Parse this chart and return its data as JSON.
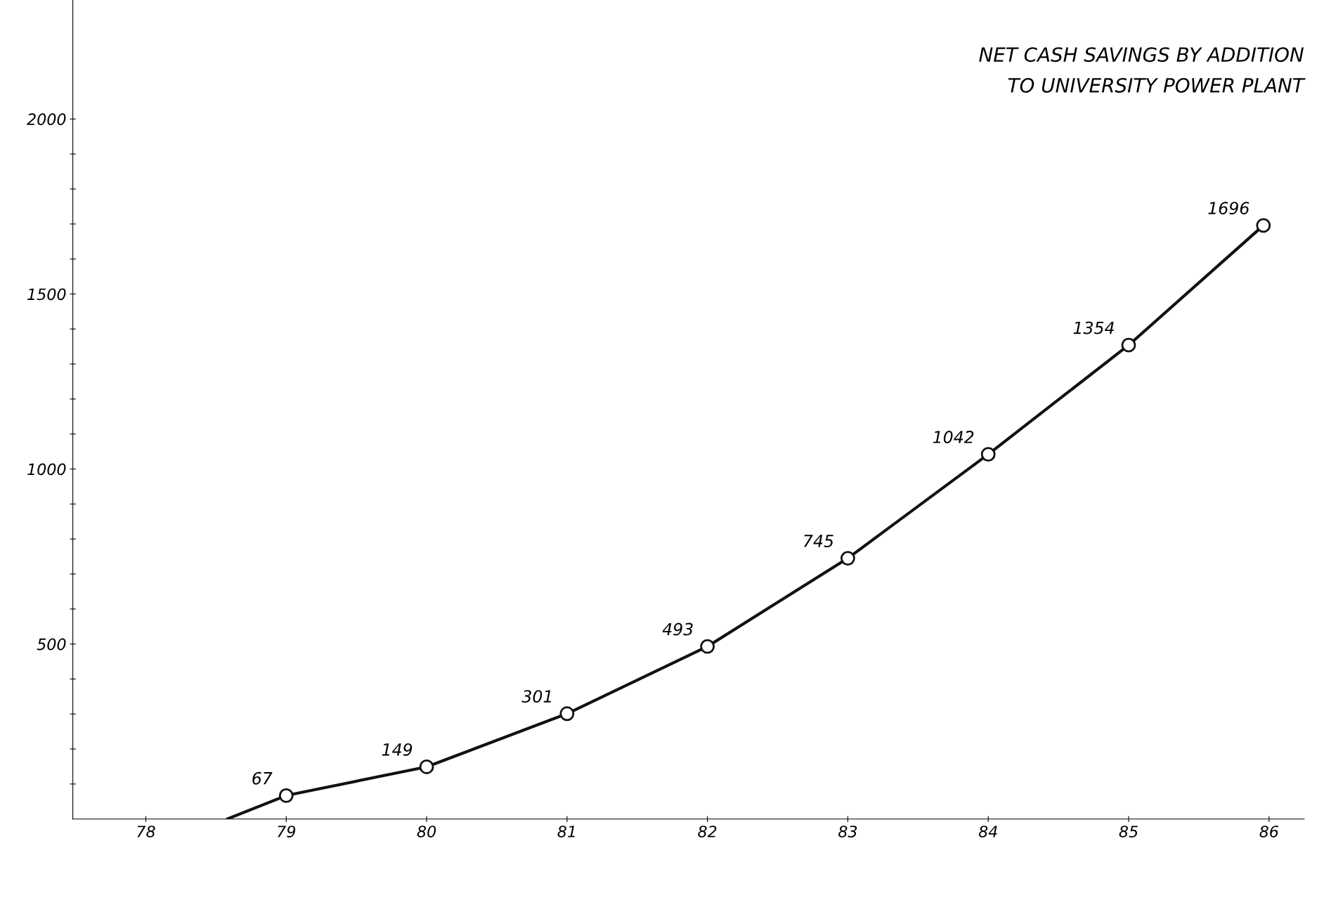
{
  "chart_data": {
    "type": "line",
    "title": "NET CASH SAVINGS BY ADDITION\nTO UNIVERSITY POWER PLANT",
    "x": [
      78.58,
      79,
      80,
      81,
      82,
      83,
      84,
      85,
      85.96
    ],
    "values": [
      0,
      67,
      149,
      301,
      493,
      745,
      1042,
      1354,
      1696
    ],
    "value_labels": [
      null,
      "67",
      "149",
      "301",
      "493",
      "745",
      "1042",
      "1354",
      "1696"
    ],
    "color": "#111111",
    "marker": "circle",
    "line_style": "solid",
    "grid": false,
    "xlim": [
      77.48,
      86.25
    ],
    "xticks": [
      78,
      79,
      80,
      81,
      82,
      83,
      84,
      85,
      86
    ],
    "ylim": [
      0,
      2340
    ],
    "yticks": [
      {
        "value": 100,
        "label": null
      },
      {
        "value": 200,
        "label": null
      },
      {
        "value": 300,
        "label": null
      },
      {
        "value": 400,
        "label": null
      },
      500,
      {
        "value": 600,
        "label": null
      },
      {
        "value": 700,
        "label": null
      },
      {
        "value": 800,
        "label": null
      },
      {
        "value": 900,
        "label": null
      },
      1000,
      {
        "value": 1100,
        "label": null
      },
      {
        "value": 1200,
        "label": null
      },
      {
        "value": 1300,
        "label": null
      },
      {
        "value": 1400,
        "label": null
      },
      1500,
      {
        "value": 1600,
        "label": null
      },
      {
        "value": 1700,
        "label": null
      },
      {
        "value": 1800,
        "label": null
      },
      {
        "value": 1900,
        "label": null
      },
      2000
    ]
  }
}
